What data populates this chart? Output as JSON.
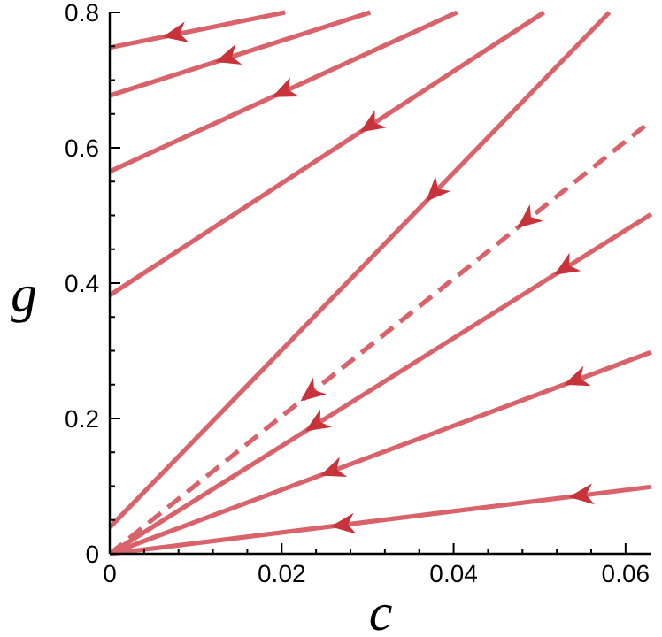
{
  "chart_data": {
    "type": "line",
    "xlabel": "c",
    "ylabel": "g",
    "xlim": [
      0,
      0.063
    ],
    "ylim": [
      0,
      0.8
    ],
    "xticks": [
      0,
      {
        "value": 0.004,
        "label": null
      },
      {
        "value": 0.008,
        "label": null
      },
      {
        "value": 0.012,
        "label": null
      },
      {
        "value": 0.016,
        "label": null
      },
      0.02,
      {
        "value": 0.024,
        "label": null
      },
      {
        "value": 0.028,
        "label": null
      },
      {
        "value": 0.032,
        "label": null
      },
      {
        "value": 0.036,
        "label": null
      },
      0.04,
      {
        "value": 0.044,
        "label": null
      },
      {
        "value": 0.048,
        "label": null
      },
      {
        "value": 0.052,
        "label": null
      },
      {
        "value": 0.056,
        "label": null
      },
      0.06
    ],
    "yticks": [
      0,
      {
        "value": 0.05,
        "label": null
      },
      {
        "value": 0.1,
        "label": null
      },
      {
        "value": 0.15,
        "label": null
      },
      0.2,
      {
        "value": 0.25,
        "label": null
      },
      {
        "value": 0.3,
        "label": null
      },
      {
        "value": 0.35,
        "label": null
      },
      0.4,
      {
        "value": 0.45,
        "label": null
      },
      {
        "value": 0.5,
        "label": null
      },
      {
        "value": 0.55,
        "label": null
      },
      0.6,
      {
        "value": 0.65,
        "label": null
      },
      {
        "value": 0.7,
        "label": null
      },
      {
        "value": 0.75,
        "label": null
      },
      0.8
    ],
    "grid": false,
    "marker": "none",
    "line_style": "solid",
    "series": [
      {
        "color": "#d9636b",
        "x": [
          0,
          0.0204
        ],
        "values": [
          0.748,
          0.8
        ]
      },
      {
        "color": "#d9636b",
        "x": [
          0,
          0.0303
        ],
        "values": [
          0.677,
          0.8
        ]
      },
      {
        "color": "#d9636b",
        "x": [
          0,
          0.0404
        ],
        "values": [
          0.565,
          0.8
        ]
      },
      {
        "color": "#d9636b",
        "x": [
          0,
          0.0505
        ],
        "values": [
          0.382,
          0.8
        ]
      },
      {
        "color": "#d9636b",
        "x": [
          0,
          0.0581
        ],
        "values": [
          0.039,
          0.8
        ]
      },
      {
        "color": "#d9636b",
        "x": [
          0,
          0.063
        ],
        "values": [
          0,
          0.64
        ],
        "line_style": "dashed"
      },
      {
        "color": "#d9636b",
        "x": [
          0,
          0.063
        ],
        "values": [
          0,
          0.502
        ]
      },
      {
        "color": "#d9636b",
        "x": [
          0,
          0.063
        ],
        "values": [
          0,
          0.298
        ]
      },
      {
        "color": "#d9636b",
        "x": [
          0,
          0.063
        ],
        "values": [
          0,
          0.099
        ]
      }
    ]
  }
}
